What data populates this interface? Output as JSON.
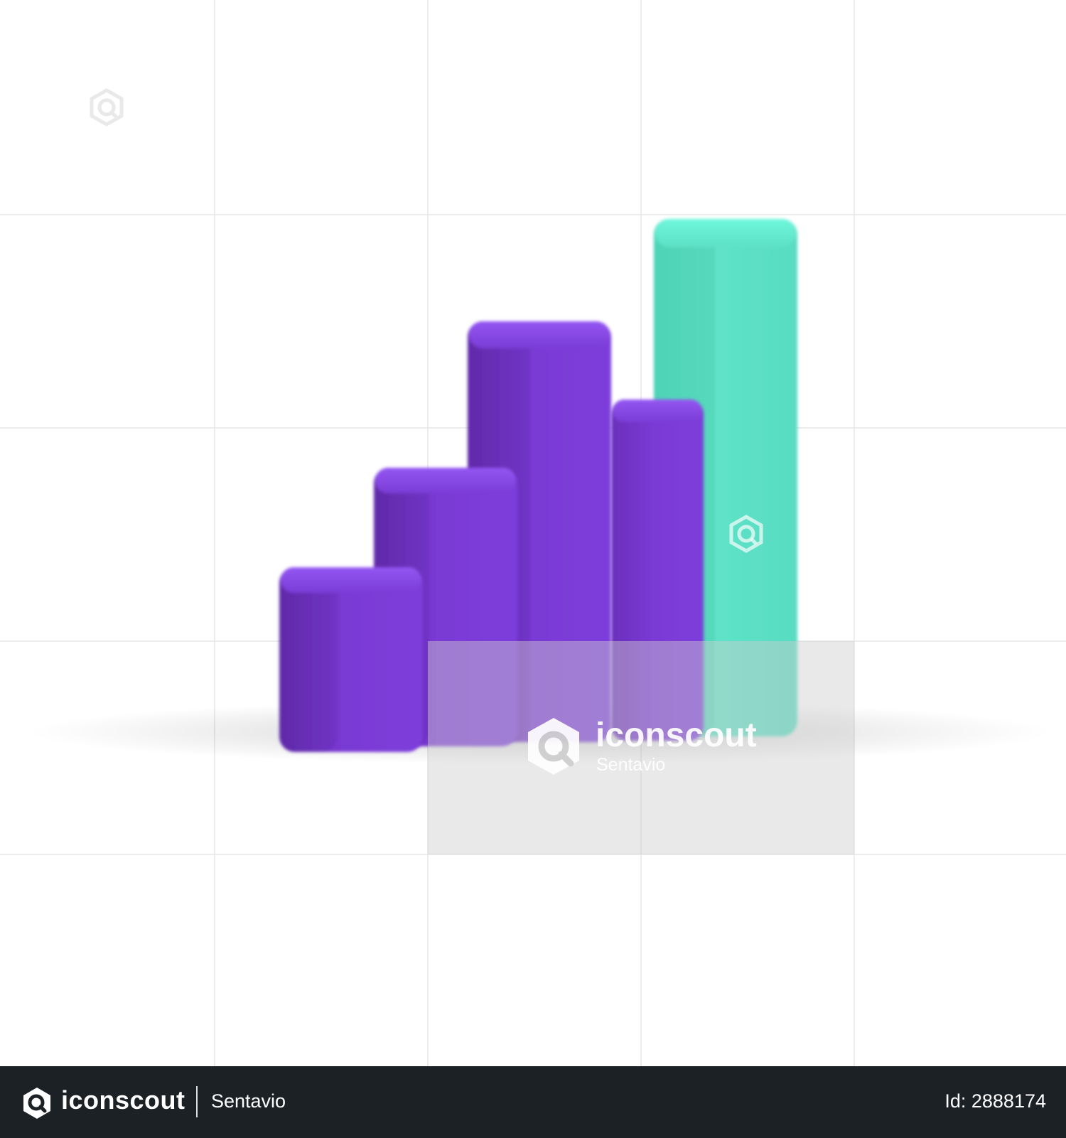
{
  "watermark": {
    "brand": "iconscout",
    "author": "Sentavio"
  },
  "footer": {
    "brand": "iconscout",
    "author": "Sentavio",
    "asset_id": "Id: 2888174",
    "logo_icon": "iconscout-logo-icon"
  },
  "colors": {
    "bar_purple": "#7a3ad4",
    "bar_purple_dark": "#5e2aa8",
    "bar_purple_light": "#8f4ef0",
    "bar_teal": "#5fe3c8",
    "bar_teal_dark": "#4ccab0",
    "footer_background": "#1c2126",
    "grid_line": "#e6e6e6",
    "watermark_overlay": "#d9d9d9"
  }
}
